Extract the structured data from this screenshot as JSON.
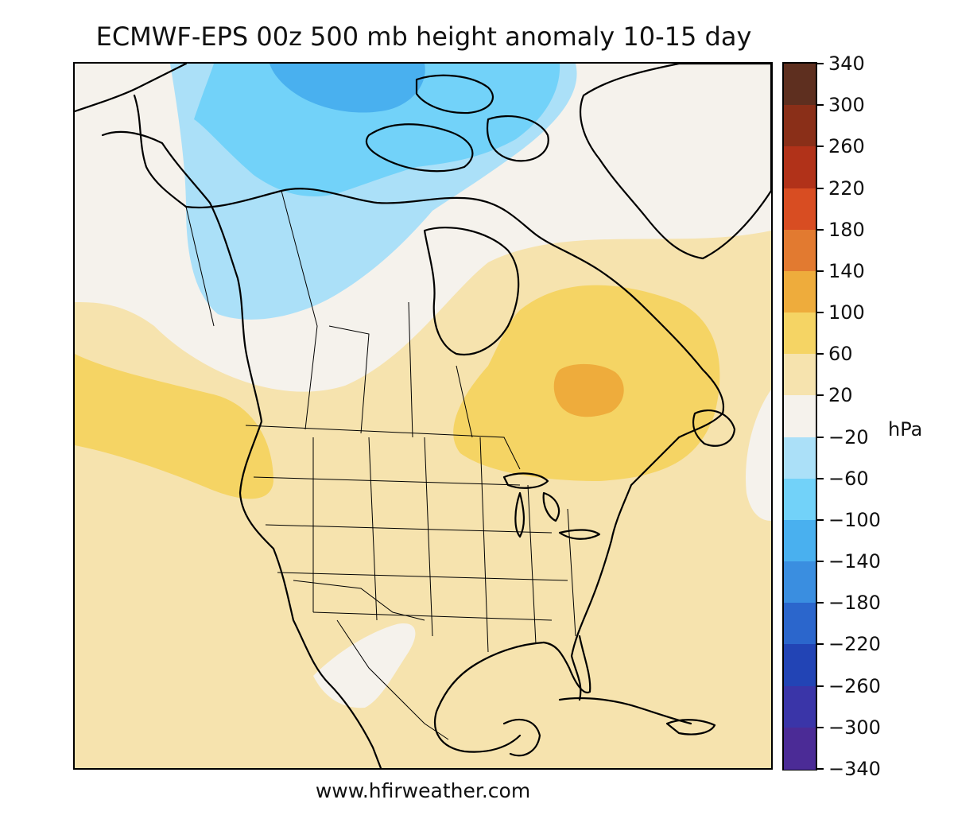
{
  "title": "ECMWF-EPS 00z 500 mb height anomaly 10-15 day",
  "footer": "www.hfirweather.com",
  "colorbar": {
    "unit": "hPa",
    "levels": [
      340,
      300,
      260,
      220,
      180,
      140,
      100,
      60,
      20,
      -20,
      -60,
      -100,
      -140,
      -180,
      -220,
      -260,
      -300,
      -340
    ],
    "labels": [
      "340",
      "300",
      "260",
      "220",
      "180",
      "140",
      "100",
      "60",
      "20",
      "−20",
      "−60",
      "−100",
      "−140",
      "−180",
      "−220",
      "−260",
      "−300",
      "−340"
    ],
    "colors": [
      "#5e2f1f",
      "#8a2f18",
      "#b13219",
      "#d84d22",
      "#e27a30",
      "#eeac3c",
      "#f5d464",
      "#f6e3ae",
      "#f5f2ec",
      "#abe0f8",
      "#72d2f9",
      "#49b0ef",
      "#3a8ee0",
      "#2b66cc",
      "#2244b5",
      "#3a35a8",
      "#4b2b96"
    ]
  },
  "map": {
    "region": "North America",
    "colors": {
      "base": "#f6e3ae",
      "neutral": "#f5f2ec",
      "light_blue": "#abe0f8",
      "blue": "#72d2f9",
      "dark_blue": "#49b0ef",
      "yellow": "#f5d464",
      "orange": "#eeac3c",
      "line": "#000000"
    }
  }
}
